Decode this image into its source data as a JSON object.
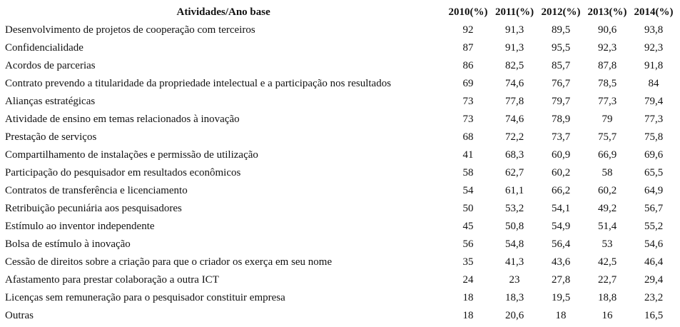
{
  "table": {
    "header": [
      "Atividades/Ano base",
      "2010(%)",
      "2011(%)",
      "2012(%)",
      "2013(%)",
      "2014(%)"
    ],
    "rows": [
      [
        "Desenvolvimento de projetos de cooperação com terceiros",
        "92",
        "91,3",
        "89,5",
        "90,6",
        "93,8"
      ],
      [
        "Confidencialidade",
        "87",
        "91,3",
        "95,5",
        "92,3",
        "92,3"
      ],
      [
        "Acordos de parcerias",
        "86",
        "82,5",
        "85,7",
        "87,8",
        "91,8"
      ],
      [
        "Contrato prevendo a titularidade da propriedade intelectual e a participação nos resultados",
        "69",
        "74,6",
        "76,7",
        "78,5",
        "84"
      ],
      [
        "Alianças estratégicas",
        "73",
        "77,8",
        "79,7",
        "77,3",
        "79,4"
      ],
      [
        "Atividade de ensino em temas relacionados à inovação",
        "73",
        "74,6",
        "78,9",
        "79",
        "77,3"
      ],
      [
        "Prestação de serviços",
        "68",
        "72,2",
        "73,7",
        "75,7",
        "75,8"
      ],
      [
        "Compartilhamento de instalações e permissão de utilização",
        "41",
        "68,3",
        "60,9",
        "66,9",
        "69,6"
      ],
      [
        "Participação do pesquisador em resultados econômicos",
        "58",
        "62,7",
        "60,2",
        "58",
        "65,5"
      ],
      [
        "Contratos de transferência e licenciamento",
        "54",
        "61,1",
        "66,2",
        "60,2",
        "64,9"
      ],
      [
        "Retribuição pecuniária aos pesquisadores",
        "50",
        "53,2",
        "54,1",
        "49,2",
        "56,7"
      ],
      [
        "Estímulo ao inventor independente",
        "45",
        "50,8",
        "54,9",
        "51,4",
        "55,2"
      ],
      [
        "Bolsa de estímulo à inovação",
        "56",
        "54,8",
        "56,4",
        "53",
        "54,6"
      ],
      [
        "Cessão de direitos sobre a criação para que o criador os exerça em seu nome",
        "35",
        "41,3",
        "43,6",
        "42,5",
        "46,4"
      ],
      [
        "Afastamento para prestar colaboração a outra ICT",
        "24",
        "23",
        "27,8",
        "22,7",
        "29,4"
      ],
      [
        "Licenças sem remuneração para o pesquisador constituir empresa",
        "18",
        "18,3",
        "19,5",
        "18,8",
        "23,2"
      ],
      [
        "Outras",
        "18",
        "20,6",
        "18",
        "16",
        "16,5"
      ]
    ]
  }
}
